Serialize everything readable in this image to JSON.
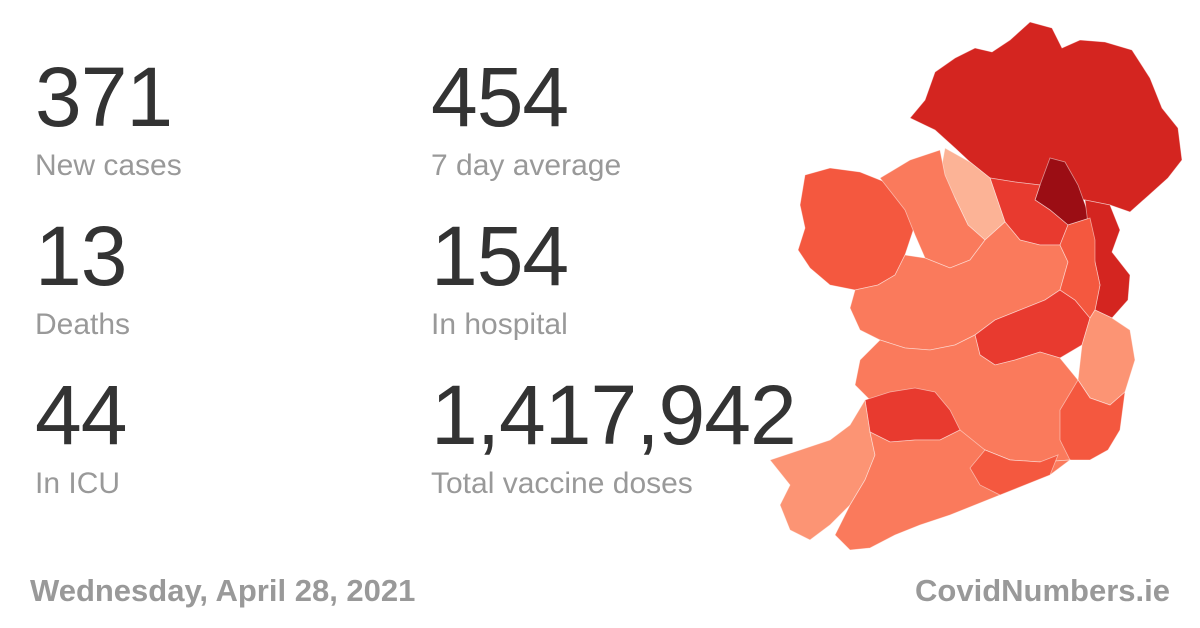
{
  "stats": [
    {
      "value": "371",
      "label": "New cases"
    },
    {
      "value": "454",
      "label": "7 day average"
    },
    {
      "value": "13",
      "label": "Deaths"
    },
    {
      "value": "154",
      "label": "In hospital"
    },
    {
      "value": "44",
      "label": "In ICU"
    },
    {
      "value": "1,417,942",
      "label": "Total vaccine doses"
    }
  ],
  "footer": {
    "date": "Wednesday, April 28, 2021",
    "site": "CovidNumbers.ie"
  },
  "map": {
    "icon": "ireland-county-map",
    "colors": {
      "darkest": "#9b0d14",
      "dark": "#d42520",
      "medium_dark": "#e83a2f",
      "medium": "#f4583f",
      "light": "#fa7a5c",
      "lighter": "#fc9474",
      "lightest": "#fcb396"
    }
  }
}
